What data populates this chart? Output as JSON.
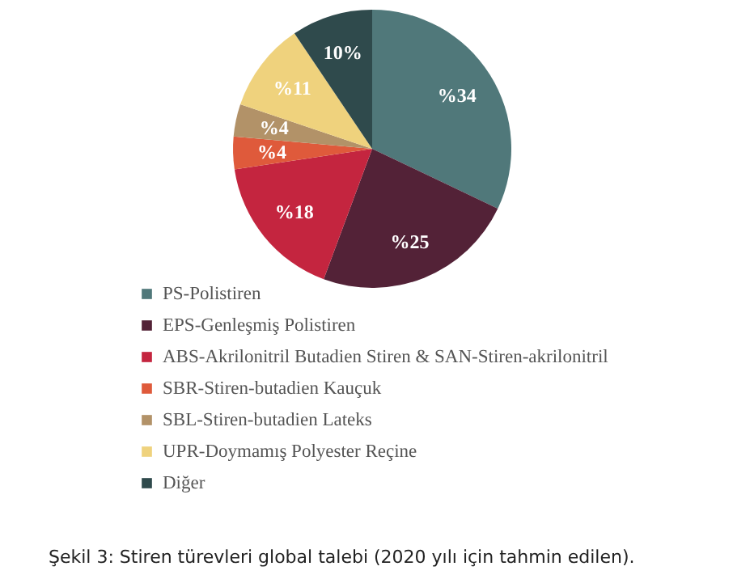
{
  "chart_data": {
    "type": "pie",
    "categories": [
      "PS-Polistiren",
      "EPS-Genleşmiş Polistiren",
      "ABS-Akrilonitril Butadien Stiren & SAN-Stiren-akrilonitril",
      "SBR-Stiren-butadien Kauçuk",
      "SBL-Stiren-butadien Lateks",
      "UPR-Doymamış Polyester Reçine",
      "Diğer"
    ],
    "values": [
      34,
      25,
      18,
      4,
      4,
      11,
      10
    ],
    "value_labels": [
      "%34",
      "%25",
      "%18",
      "%4",
      "%4",
      "%11",
      "10%"
    ],
    "colors": [
      "#50787a",
      "#532237",
      "#c4253f",
      "#df5a3b",
      "#b29268",
      "#efd27d",
      "#2f4a4c"
    ],
    "legend": "bottom",
    "annotations": [
      "Şekil 3: Stiren türevleri global talebi (2020 yılı için tahmin edilen)."
    ]
  }
}
